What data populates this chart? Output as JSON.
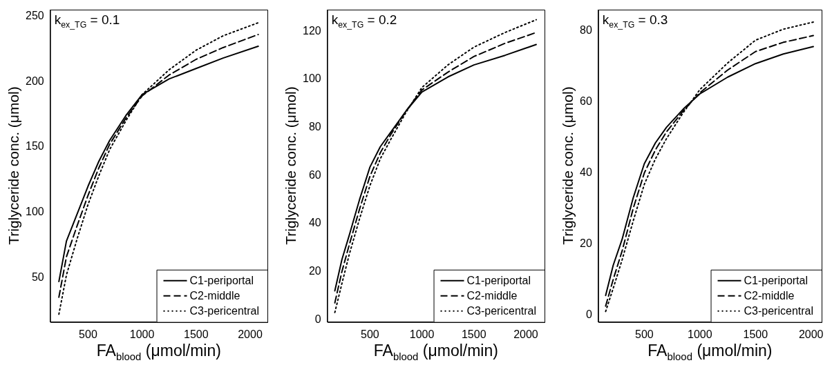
{
  "chart_data": [
    {
      "type": "line",
      "xlabel": "FA$_{blood}$ (μmol/min)",
      "ylabel": "Triglyceride conc. (μmol)",
      "annotations": [
        "k$_{ex_TG}$ = 0.1"
      ],
      "xlim": [
        150,
        2160
      ],
      "ylim": [
        16,
        255
      ],
      "xticks": [
        500,
        1000,
        1500,
        2000
      ],
      "yticks": [
        50,
        100,
        150,
        200,
        250
      ],
      "grid": false,
      "legend": "bottom right",
      "series": [
        {
          "name": "C1-periportal",
          "color": "#000000",
          "line_style": "solid",
          "x": [
            230,
            300,
            400,
            500,
            600,
            700,
            850,
            1000,
            1250,
            1500,
            1750,
            2075
          ],
          "values": [
            47,
            78,
            99,
            120,
            139,
            155,
            174,
            190,
            202,
            210,
            218,
            227
          ]
        },
        {
          "name": "C2-middle",
          "color": "#000000",
          "line_style": "dashed",
          "x": [
            230,
            300,
            400,
            500,
            600,
            700,
            850,
            1000,
            1250,
            1500,
            1750,
            2075
          ],
          "values": [
            35,
            66,
            90,
            113,
            134,
            152,
            172,
            189,
            205,
            217,
            226,
            236
          ]
        },
        {
          "name": "C3-pericentral",
          "color": "#000000",
          "line_style": "dotted",
          "x": [
            230,
            300,
            400,
            500,
            600,
            700,
            850,
            1000,
            1250,
            1500,
            1750,
            2075
          ],
          "values": [
            22,
            52,
            80,
            106,
            128,
            148,
            170,
            190,
            209,
            224,
            235,
            245
          ]
        }
      ]
    },
    {
      "type": "line",
      "xlabel": "FA$_{blood}$ (μmol/min)",
      "ylabel": "Triglyceride conc. (μmol)",
      "annotations": [
        "k$_{ex_TG}$ = 0.2"
      ],
      "xlim": [
        90,
        2180
      ],
      "ylim": [
        -1,
        129
      ],
      "xticks": [
        500,
        1000,
        1500,
        2000
      ],
      "yticks": [
        0,
        20,
        40,
        60,
        80,
        100,
        120
      ],
      "grid": false,
      "legend": "bottom right",
      "series": [
        {
          "name": "C1-periportal",
          "color": "#000000",
          "line_style": "solid",
          "x": [
            162,
            230,
            300,
            400,
            500,
            600,
            700,
            850,
            1000,
            1250,
            1500,
            1800,
            2100
          ],
          "values": [
            12,
            25,
            35,
            50,
            63.5,
            72,
            78,
            87,
            94.7,
            101,
            106,
            110,
            114.5
          ]
        },
        {
          "name": "C2-middle",
          "color": "#000000",
          "line_style": "dashed",
          "x": [
            162,
            230,
            300,
            400,
            500,
            600,
            700,
            850,
            1000,
            1250,
            1500,
            1800,
            2100
          ],
          "values": [
            7,
            20,
            31,
            46,
            59.7,
            69.5,
            77,
            87,
            95.6,
            103,
            109.5,
            115,
            119.5
          ]
        },
        {
          "name": "C3-pericentral",
          "color": "#000000",
          "line_style": "dotted",
          "x": [
            162,
            230,
            300,
            400,
            500,
            600,
            700,
            850,
            1000,
            1250,
            1500,
            1800,
            2100
          ],
          "values": [
            3,
            15,
            27,
            42,
            55.8,
            67,
            75,
            86.5,
            96.6,
            106,
            113.4,
            119.5,
            124.8
          ]
        }
      ]
    },
    {
      "type": "line",
      "xlabel": "FA$_{blood}$ (μmol/min)",
      "ylabel": "Triglyceride conc. (μmol)",
      "annotations": [
        "k$_{ex_TG}$ = 0.3"
      ],
      "xlim": [
        86,
        2095
      ],
      "ylim": [
        -2,
        86
      ],
      "xticks": [
        500,
        1000,
        1500,
        2000
      ],
      "yticks": [
        0,
        20,
        40,
        60,
        80
      ],
      "grid": false,
      "legend": "bottom right",
      "series": [
        {
          "name": "C1-periportal",
          "color": "#000000",
          "line_style": "solid",
          "x": [
            152,
            220,
            300,
            400,
            500,
            600,
            700,
            850,
            1000,
            1250,
            1500,
            1750,
            2020
          ],
          "values": [
            5.5,
            14,
            21.3,
            33,
            42.6,
            48.5,
            52.9,
            58,
            62.3,
            67,
            70.8,
            73.5,
            75.6
          ]
        },
        {
          "name": "C2-middle",
          "color": "#000000",
          "line_style": "dashed",
          "x": [
            152,
            220,
            300,
            400,
            500,
            600,
            700,
            850,
            1000,
            1250,
            1500,
            1750,
            2020
          ],
          "values": [
            2.5,
            10,
            18,
            30,
            40,
            46.5,
            51.6,
            57.5,
            62.6,
            69,
            74.2,
            76.8,
            78.7
          ]
        },
        {
          "name": "C3-pericentral",
          "color": "#000000",
          "line_style": "dotted",
          "x": [
            152,
            220,
            300,
            400,
            500,
            600,
            700,
            850,
            1000,
            1250,
            1500,
            1750,
            2020
          ],
          "values": [
            1,
            7.5,
            15.5,
            26.5,
            36.8,
            44,
            49.7,
            57,
            63.5,
            71,
            77.4,
            80.5,
            82.5
          ]
        }
      ]
    }
  ]
}
